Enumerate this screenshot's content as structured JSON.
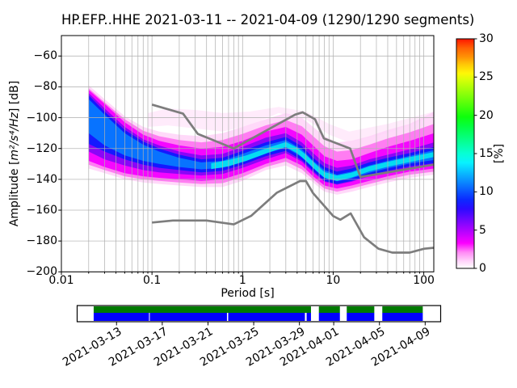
{
  "meta": {
    "station_id": "HP.EFP..HHE",
    "start_date": "2021-03-11",
    "end_date": "2021-04-09",
    "segments_used": 1290,
    "segments_total": 1290
  },
  "chart_data": {
    "type": "heatmap",
    "title": "HP.EFP..HHE   2021-03-11 -- 2021-04-09  (1290/1290 segments)",
    "xlabel": "Period [s]",
    "ylabel": "Amplitude [m²/s⁴/Hz] [dB]",
    "ylabel_parts": {
      "pre": "Amplitude [",
      "math": "m²/s⁴/Hz",
      "post": "] [dB]"
    },
    "xscale": "log",
    "xlim": [
      0.01,
      129
    ],
    "ylim": [
      -200,
      -46.7
    ],
    "grid": true,
    "grid_color": "#b0b0b0",
    "x_ticks": {
      "values": [
        0.01,
        0.1,
        1,
        10,
        100
      ],
      "labels": [
        "0.01",
        "0.1",
        "1",
        "10",
        "100"
      ]
    },
    "y_ticks": {
      "values": [
        -60,
        -80,
        -100,
        -120,
        -140,
        -160,
        -180,
        -200
      ],
      "labels": [
        "−60",
        "−80",
        "−100",
        "−120",
        "−140",
        "−160",
        "−180",
        "−200"
      ]
    },
    "colorbar": {
      "label": "[%]",
      "min": 0,
      "max": 30,
      "ticks": [
        0,
        5,
        10,
        15,
        20,
        25,
        30
      ],
      "gradient": [
        [
          0,
          "#ffffff"
        ],
        [
          0.03,
          "#ffd6fa"
        ],
        [
          0.07,
          "#ff8af5"
        ],
        [
          0.11,
          "#fb00ff"
        ],
        [
          0.16,
          "#b603ff"
        ],
        [
          0.21,
          "#7107ff"
        ],
        [
          0.26,
          "#2b0bff"
        ],
        [
          0.3,
          "#0b2aff"
        ],
        [
          0.34,
          "#0a5cff"
        ],
        [
          0.38,
          "#0a8eff"
        ],
        [
          0.42,
          "#09c0ff"
        ],
        [
          0.46,
          "#08f2ff"
        ],
        [
          0.5,
          "#07ffd4"
        ],
        [
          0.54,
          "#06ffa2"
        ],
        [
          0.58,
          "#05ff70"
        ],
        [
          0.62,
          "#04ff3e"
        ],
        [
          0.66,
          "#0eff0c"
        ],
        [
          0.7,
          "#40ff0b"
        ],
        [
          0.74,
          "#72ff0a"
        ],
        [
          0.78,
          "#a4ff09"
        ],
        [
          0.82,
          "#d6ff08"
        ],
        [
          0.85,
          "#fff707"
        ],
        [
          0.89,
          "#ffc506"
        ],
        [
          0.92,
          "#ff9305"
        ],
        [
          0.96,
          "#ff6104"
        ],
        [
          1,
          "#ff1500"
        ]
      ]
    },
    "noise_models": {
      "color": "#7d7d7d",
      "nhnm": [
        [
          0.1,
          -91.5
        ],
        [
          0.22,
          -97.4
        ],
        [
          0.32,
          -110.5
        ],
        [
          0.8,
          -120
        ],
        [
          3.8,
          -98
        ],
        [
          4.6,
          -96.5
        ],
        [
          6.3,
          -101
        ],
        [
          7.9,
          -113.5
        ],
        [
          15.4,
          -120
        ],
        [
          20,
          -138.5
        ],
        [
          130,
          -130.4
        ]
      ],
      "nlnm": [
        [
          0.1,
          -168
        ],
        [
          0.17,
          -166.7
        ],
        [
          0.4,
          -166.7
        ],
        [
          0.8,
          -169.2
        ],
        [
          1.24,
          -163.7
        ],
        [
          2.4,
          -148.6
        ],
        [
          4.3,
          -141.1
        ],
        [
          5.0,
          -141.1
        ],
        [
          6.0,
          -149
        ],
        [
          10,
          -163.8
        ],
        [
          12,
          -166.2
        ],
        [
          15.6,
          -162.1
        ],
        [
          21.9,
          -177.5
        ],
        [
          31.6,
          -185
        ],
        [
          45,
          -187.5
        ],
        [
          70,
          -187.5
        ],
        [
          101,
          -185
        ],
        [
          130,
          -184.4
        ]
      ]
    },
    "density_bands": [
      {
        "name": "wisp",
        "color": "#ffdef9",
        "opacity": 0.6,
        "periods": [
          0.09,
          0.15,
          0.3,
          0.6,
          1.2,
          2.5,
          5,
          9,
          15,
          40,
          130
        ],
        "top": [
          -97,
          -94,
          -95,
          -97,
          -96,
          -93,
          -96,
          -104,
          -109,
          -104,
          -96
        ],
        "bottom": [
          -106,
          -105,
          -107,
          -109,
          -105,
          -97,
          -101,
          -111,
          -116,
          -110,
          -99
        ]
      },
      {
        "name": "faint-pink",
        "color": "#ffd2f8",
        "opacity": 0.85,
        "periods": [
          0.02,
          0.03,
          0.05,
          0.08,
          0.12,
          0.2,
          0.35,
          0.6,
          1.0,
          1.8,
          3.0,
          4.5,
          6.0,
          8.0,
          11,
          16,
          25,
          40,
          70,
          130
        ],
        "top": [
          -79,
          -88,
          -99,
          -106,
          -109,
          -111,
          -112,
          -110,
          -106,
          -101,
          -97,
          -100,
          -106,
          -112,
          -116,
          -115,
          -112,
          -108,
          -104,
          -96
        ],
        "bottom": [
          -133,
          -136,
          -140,
          -142,
          -143,
          -144,
          -145,
          -145,
          -141,
          -134,
          -131,
          -136,
          -142,
          -148,
          -150,
          -148,
          -145,
          -142,
          -139,
          -137
        ]
      },
      {
        "name": "pink",
        "color": "#ff7df2",
        "opacity": 1,
        "periods": [
          0.02,
          0.03,
          0.05,
          0.08,
          0.12,
          0.2,
          0.35,
          0.6,
          1.0,
          1.8,
          3.0,
          4.5,
          6.0,
          8.0,
          11,
          16,
          25,
          40,
          70,
          130
        ],
        "top": [
          -81,
          -90,
          -101,
          -108.5,
          -112,
          -114.5,
          -116,
          -114.5,
          -110.5,
          -105,
          -101.5,
          -105.5,
          -112,
          -118.5,
          -122,
          -121,
          -117.5,
          -113.5,
          -109.5,
          -104
        ],
        "bottom": [
          -130.5,
          -134,
          -138,
          -140,
          -141,
          -142,
          -143,
          -142.5,
          -138.5,
          -132,
          -128.5,
          -133.5,
          -140,
          -146,
          -148,
          -146,
          -143,
          -140,
          -137,
          -135
        ]
      },
      {
        "name": "magenta",
        "color": "#f507ff",
        "opacity": 1,
        "periods": [
          0.02,
          0.03,
          0.05,
          0.08,
          0.12,
          0.2,
          0.35,
          0.6,
          1.0,
          1.8,
          3.0,
          4.5,
          6.0,
          8.0,
          11,
          16,
          25,
          40,
          70,
          130
        ],
        "top": [
          -82,
          -91,
          -103,
          -111,
          -115,
          -118,
          -120,
          -119,
          -115,
          -109,
          -106,
          -111,
          -118,
          -125,
          -128,
          -127,
          -123,
          -119,
          -115,
          -110
        ],
        "bottom": [
          -128,
          -132,
          -136,
          -138,
          -139,
          -140,
          -141,
          -140,
          -136,
          -130,
          -126,
          -131,
          -138,
          -144,
          -146,
          -144,
          -141,
          -138,
          -135,
          -133
        ]
      },
      {
        "name": "violet",
        "color": "#8a06f7",
        "opacity": 1,
        "periods": [
          0.02,
          0.03,
          0.05,
          0.08,
          0.12,
          0.2,
          0.35,
          0.6,
          1.0,
          1.8,
          3.0,
          4.5,
          6.0,
          8.0,
          11,
          16,
          25,
          40,
          70,
          130
        ],
        "top": [
          -84,
          -94,
          -106,
          -114,
          -118,
          -122,
          -124.5,
          -123.5,
          -119,
          -113,
          -110,
          -116,
          -123,
          -129.5,
          -132.5,
          -131,
          -127,
          -124,
          -120.5,
          -116
        ],
        "bottom": [
          -122,
          -127,
          -131,
          -134,
          -135.5,
          -136.5,
          -137.5,
          -136.5,
          -132.5,
          -127,
          -123,
          -128.5,
          -135.5,
          -141.5,
          -143.5,
          -141.5,
          -138,
          -135.5,
          -132.5,
          -130.5
        ]
      },
      {
        "name": "blue",
        "color": "#1419ff",
        "opacity": 1,
        "periods": [
          0.02,
          0.03,
          0.05,
          0.08,
          0.12,
          0.2,
          0.35,
          0.6,
          1.0,
          1.8,
          3.0,
          4.5,
          6.0,
          8.0,
          11,
          16,
          25,
          40,
          70,
          130
        ],
        "top": [
          -85.5,
          -96,
          -108,
          -115.5,
          -120,
          -124,
          -127,
          -126,
          -121.5,
          -116,
          -112.5,
          -118.5,
          -126,
          -132,
          -135,
          -133,
          -129,
          -126,
          -123,
          -119
        ],
        "bottom": [
          -117,
          -122,
          -127,
          -130.5,
          -132.5,
          -134,
          -135.5,
          -134.5,
          -130.5,
          -125,
          -121.5,
          -127.5,
          -134.5,
          -141,
          -143,
          -141,
          -137.5,
          -134.5,
          -131.5,
          -129.5
        ]
      },
      {
        "name": "azure",
        "color": "#0873ff",
        "opacity": 1,
        "periods": [
          0.02,
          0.03,
          0.05,
          0.08,
          0.12,
          0.2,
          0.35,
          0.6,
          1.0,
          1.8,
          3.0,
          4.5,
          6.0,
          8.0,
          11,
          16,
          25,
          40,
          70,
          130
        ],
        "top": [
          -88,
          -98,
          -110,
          -117.5,
          -122,
          -126,
          -129,
          -128,
          -123.5,
          -118,
          -114.5,
          -120.5,
          -128,
          -134,
          -137,
          -135,
          -131,
          -128,
          -124.8,
          -121
        ],
        "bottom": [
          -110,
          -118,
          -124.5,
          -128,
          -130,
          -132,
          -133.5,
          -132.5,
          -128.5,
          -123,
          -119.5,
          -125.5,
          -132.5,
          -139,
          -141.3,
          -139.3,
          -135.8,
          -132.8,
          -129.8,
          -127.5
        ]
      },
      {
        "name": "cyan",
        "color": "#04dcf2",
        "opacity": 1,
        "periods": [
          0.45,
          0.7,
          1.1,
          1.9,
          3.0,
          4.0,
          5.0,
          6.5,
          8.0,
          11,
          16,
          25,
          40,
          70,
          130
        ],
        "top": [
          -129.6,
          -127.5,
          -124.5,
          -119.5,
          -115.8,
          -119.5,
          -124,
          -130.5,
          -135.3,
          -137.6,
          -135.6,
          -131.6,
          -128.6,
          -125.6,
          -122.3
        ],
        "bottom": [
          -133.4,
          -131.5,
          -128,
          -122.8,
          -119,
          -123,
          -128,
          -134.5,
          -139,
          -141,
          -138.8,
          -134.8,
          -131.8,
          -128.8,
          -125.5
        ]
      }
    ],
    "coverage": {
      "green_color": "#007a00",
      "blue_color": "#0000ff",
      "span_days": 31.73,
      "ticks": [
        {
          "day": 3.41,
          "label": "2021-03-13"
        },
        {
          "day": 7.41,
          "label": "2021-03-17"
        },
        {
          "day": 11.41,
          "label": "2021-03-21"
        },
        {
          "day": 15.41,
          "label": "2021-03-25"
        },
        {
          "day": 19.41,
          "label": "2021-03-29"
        },
        {
          "day": 22.41,
          "label": "2021-04-01"
        },
        {
          "day": 26.41,
          "label": "2021-04-05"
        },
        {
          "day": 30.41,
          "label": "2021-04-09"
        }
      ],
      "green_segments": [
        [
          1.41,
          20.42
        ],
        [
          21.11,
          22.95
        ],
        [
          23.55,
          25.96
        ],
        [
          26.66,
          30.2
        ]
      ],
      "blue_segments": [
        [
          1.41,
          6.25
        ],
        [
          6.32,
          13.07
        ],
        [
          13.18,
          19.89
        ],
        [
          20.04,
          20.42
        ],
        [
          21.11,
          22.95
        ],
        [
          23.55,
          25.96
        ],
        [
          26.66,
          30.2
        ]
      ]
    }
  }
}
